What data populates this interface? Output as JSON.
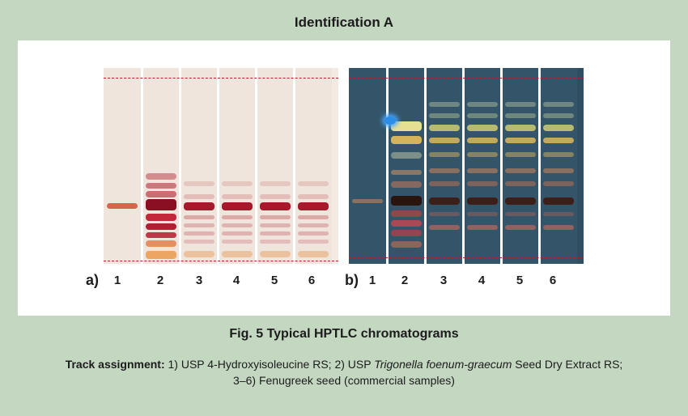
{
  "title": "Identification A",
  "panels": [
    {
      "label": "a)",
      "lanes": [
        "1",
        "2",
        "3",
        "4",
        "5",
        "6"
      ]
    },
    {
      "label": "b)",
      "lanes": [
        "1",
        "2",
        "3",
        "4",
        "5",
        "6"
      ]
    }
  ],
  "caption": "Fig. 5  Typical HPTLC chromatograms",
  "track_assignment": {
    "label": "Track assignment:",
    "part1": " 1) USP 4-Hydroxyisoleucine RS; 2) USP ",
    "italic": "Trigonella foenum-graecum",
    "part2": " Seed Dry Extract RS;",
    "line2": "3–6) Fenugreek seed (commercial samples)"
  },
  "colors": {
    "background": "#c3d7c1",
    "plate_a": "#efe5dc",
    "plate_b": "#345569",
    "reference_line": "#b2202a"
  }
}
